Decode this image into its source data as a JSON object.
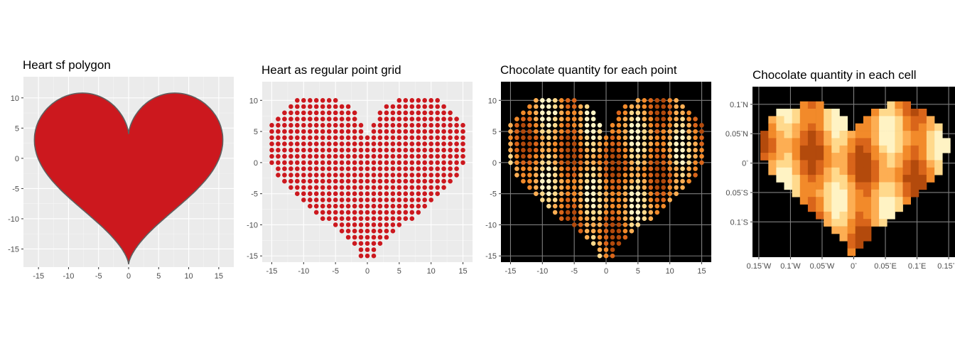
{
  "colors": {
    "panel_bg": "#ebebeb",
    "grid_major": "#ffffff",
    "grid_minor": "#f5f5f5",
    "dark_bg": "#000000",
    "dark_grid": "#7f7f7f",
    "heart_fill": "#cc181e",
    "heart_outline": "#606060",
    "point_red": "#cc181e",
    "choc_ramp": [
      "#fff3c4",
      "#ffd98c",
      "#fdae53",
      "#f28a2a",
      "#d9651a",
      "#b34a0c"
    ]
  },
  "chart_data": [
    {
      "type": "area",
      "title": "Heart sf polygon",
      "shape": "heart polygon",
      "xlim": [
        -17.5,
        17.5
      ],
      "ylim": [
        -18,
        13.5
      ],
      "x_ticks": [
        "-15",
        "-10",
        "-5",
        "0",
        "5",
        "10",
        "15"
      ],
      "x_tick_values": [
        -15,
        -10,
        -5,
        0,
        5,
        10,
        15
      ],
      "y_ticks": [
        "10",
        "5",
        "0",
        "-5",
        "-10",
        "-15"
      ],
      "y_tick_values": [
        10,
        5,
        0,
        -5,
        -10,
        -15
      ],
      "grid": true
    },
    {
      "type": "scatter",
      "title": "Heart as regular point grid",
      "grid_spacing": 1,
      "xlim": [
        -16.5,
        16.5
      ],
      "ylim": [
        -16,
        13
      ],
      "x_ticks": [
        "-15",
        "-10",
        "-5",
        "0",
        "5",
        "10",
        "15"
      ],
      "x_tick_values": [
        -15,
        -10,
        -5,
        0,
        5,
        10,
        15
      ],
      "y_ticks": [
        "10",
        "5",
        "0",
        "-5",
        "-10",
        "-15"
      ],
      "y_tick_values": [
        10,
        5,
        0,
        -5,
        -10,
        -15
      ],
      "grid": true
    },
    {
      "type": "scatter",
      "title": "Chocolate quantity for each point",
      "grid_spacing": 1,
      "color_by": "chocolate quantity",
      "xlim": [
        -16.5,
        16.5
      ],
      "ylim": [
        -16,
        13
      ],
      "x_ticks": [
        "-15",
        "-10",
        "-5",
        "0",
        "5",
        "10",
        "15"
      ],
      "x_tick_values": [
        -15,
        -10,
        -5,
        0,
        5,
        10,
        15
      ],
      "y_ticks": [
        "10",
        "5",
        "0",
        "-5",
        "-10",
        "-15"
      ],
      "y_tick_values": [
        10,
        5,
        0,
        -5,
        -10,
        -15
      ],
      "grid": true
    },
    {
      "type": "heatmap",
      "title": "Chocolate quantity in each cell",
      "cell_size_deg": 0.0125,
      "xlim": [
        -0.16,
        0.16
      ],
      "ylim": [
        -0.16,
        0.13
      ],
      "x_ticks": [
        {
          "v": -0.15,
          "num": "0.15",
          "deg": "°",
          "hem": "W"
        },
        {
          "v": -0.1,
          "num": "0.1",
          "deg": "°",
          "hem": "W"
        },
        {
          "v": -0.05,
          "num": "0.05",
          "deg": "°",
          "hem": "W"
        },
        {
          "v": 0,
          "num": "0",
          "deg": "°",
          "hem": ""
        },
        {
          "v": 0.05,
          "num": "0.05",
          "deg": "°",
          "hem": "E"
        },
        {
          "v": 0.1,
          "num": "0.1",
          "deg": "°",
          "hem": "E"
        },
        {
          "v": 0.15,
          "num": "0.15",
          "deg": "°",
          "hem": "E"
        }
      ],
      "y_ticks": [
        {
          "v": 0.1,
          "num": "0.1",
          "deg": "°",
          "hem": "N"
        },
        {
          "v": 0.05,
          "num": "0.05",
          "deg": "°",
          "hem": "N"
        },
        {
          "v": 0,
          "num": "0",
          "deg": "°",
          "hem": ""
        },
        {
          "v": -0.05,
          "num": "0.05",
          "deg": "°",
          "hem": "S"
        },
        {
          "v": -0.1,
          "num": "0.1",
          "deg": "°",
          "hem": "S"
        }
      ],
      "grid": true
    }
  ]
}
